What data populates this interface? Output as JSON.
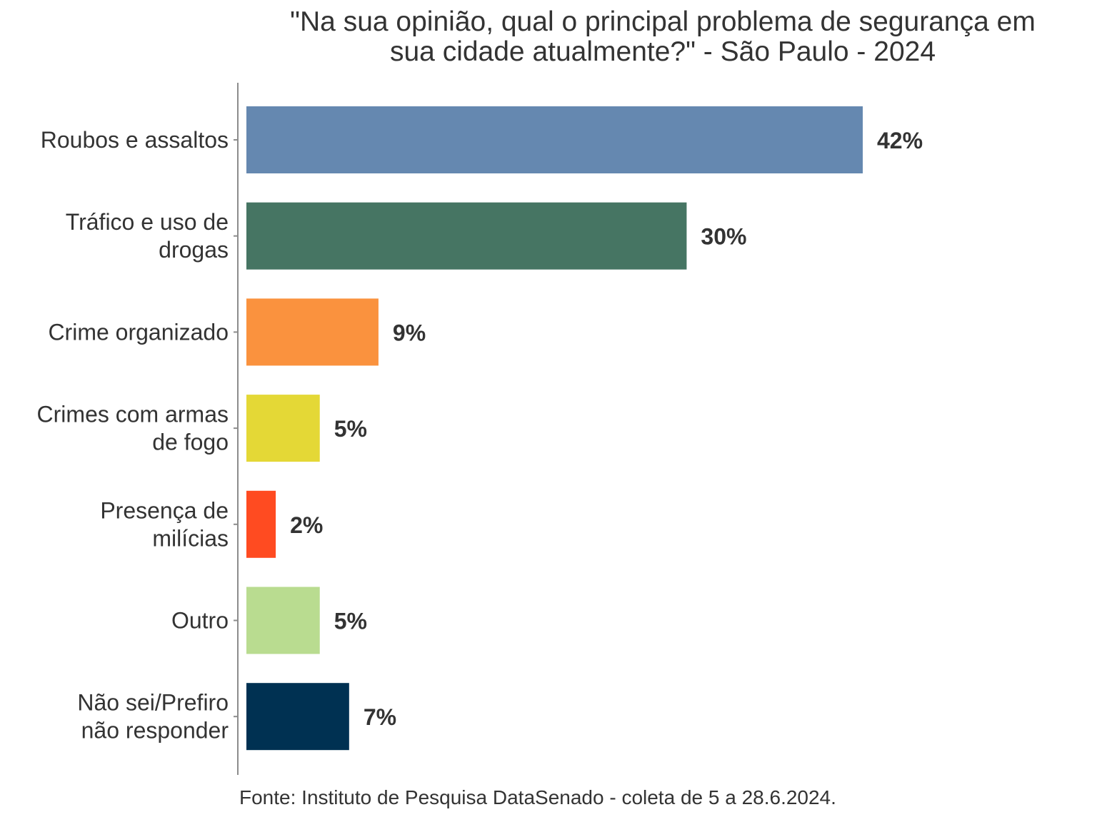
{
  "chart_data": {
    "type": "bar",
    "orientation": "horizontal",
    "title_lines": [
      "\"Na sua opinião, qual o principal problema de segurança em",
      "sua cidade atualmente?\" - São Paulo - 2024"
    ],
    "categories": [
      [
        "Roubos e assaltos"
      ],
      [
        "Tráfico e uso de",
        "drogas"
      ],
      [
        "Crime organizado"
      ],
      [
        "Crimes com armas",
        "de fogo"
      ],
      [
        "Presença de",
        "milícias"
      ],
      [
        "Outro"
      ],
      [
        "Não sei/Prefiro",
        "não responder"
      ]
    ],
    "values": [
      42,
      30,
      9,
      5,
      2,
      5,
      7
    ],
    "value_labels": [
      "42%",
      "30%",
      "9%",
      "5%",
      "2%",
      "5%",
      "7%"
    ],
    "colors": [
      "#6588B0",
      "#467563",
      "#FA923E",
      "#E4D836",
      "#FF4B21",
      "#B9DC90",
      "#003152"
    ],
    "unit": "%",
    "xlabel": "",
    "ylabel": "",
    "xlim": [
      0,
      42
    ],
    "grid": false,
    "legend": "none",
    "source": "Fonte: Instituto de Pesquisa DataSenado - coleta de 5 a 28.6.2024."
  }
}
